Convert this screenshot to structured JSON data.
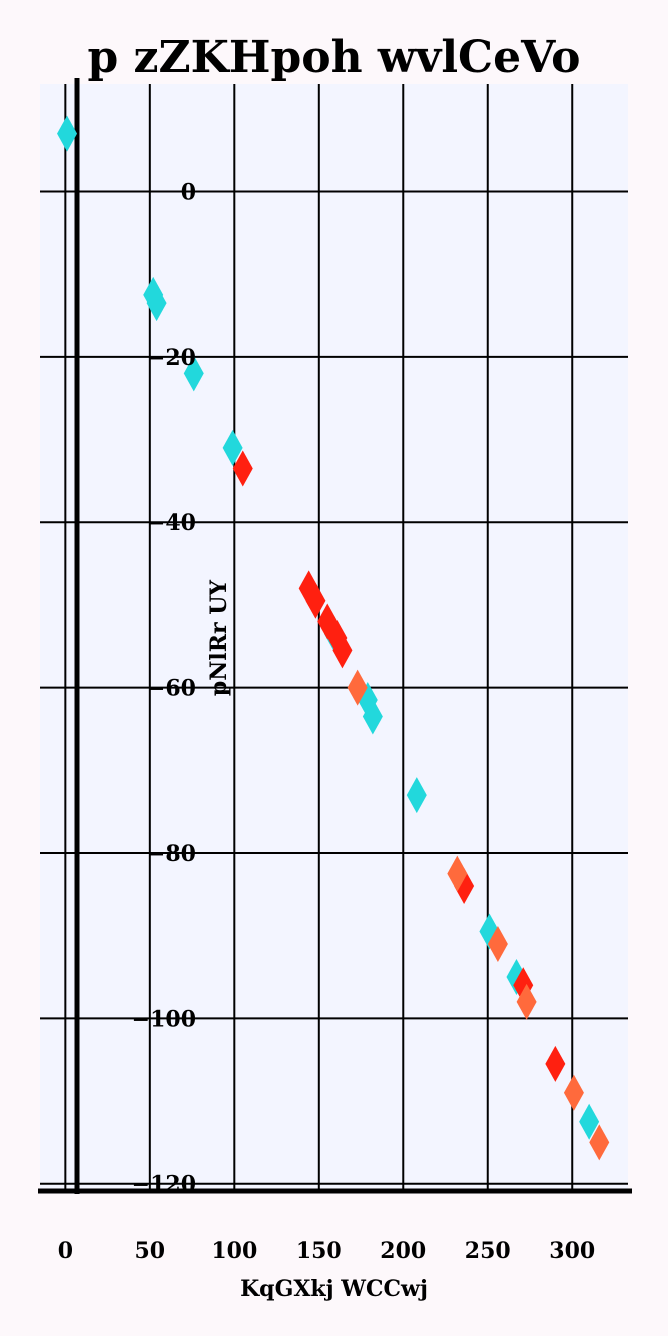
{
  "chart_data": {
    "type": "scatter",
    "title": "p zZKHpoh wvlCeVo",
    "xlabel": "KqGXkj  WCCwj",
    "ylabel": "pNlRr UY",
    "xlim": [
      -15,
      333
    ],
    "ylim": [
      -121,
      13
    ],
    "xticks": [
      0,
      50,
      100,
      150,
      200,
      250,
      300
    ],
    "yticks": [
      0,
      -20,
      -40,
      -60,
      -80,
      -100,
      -120
    ],
    "grid": true,
    "marker": "diamond",
    "series": [
      {
        "name": "cyan",
        "color": "#22d8dc",
        "points": [
          [
            1,
            7
          ],
          [
            52,
            -12.5
          ],
          [
            54,
            -13.5
          ],
          [
            76,
            -22
          ],
          [
            99,
            -31
          ],
          [
            159,
            -53.5
          ],
          [
            179,
            -61.5
          ],
          [
            182,
            -63.5
          ],
          [
            208,
            -73
          ],
          [
            251,
            -89.5
          ],
          [
            267,
            -95
          ],
          [
            310,
            -112.5
          ]
        ]
      },
      {
        "name": "red",
        "color": "#ff2010",
        "points": [
          [
            105,
            -33.5
          ],
          [
            144,
            -48
          ],
          [
            148,
            -49.5
          ],
          [
            155,
            -52
          ],
          [
            161,
            -54
          ],
          [
            164,
            -55.5
          ],
          [
            236,
            -84
          ],
          [
            271,
            -96
          ],
          [
            290,
            -105.5
          ]
        ]
      },
      {
        "name": "orange",
        "color": "#ff6a3c",
        "points": [
          [
            173,
            -60
          ],
          [
            232,
            -82.5
          ],
          [
            256,
            -91
          ],
          [
            273,
            -98
          ],
          [
            301,
            -109
          ],
          [
            316,
            -115
          ]
        ]
      }
    ]
  }
}
